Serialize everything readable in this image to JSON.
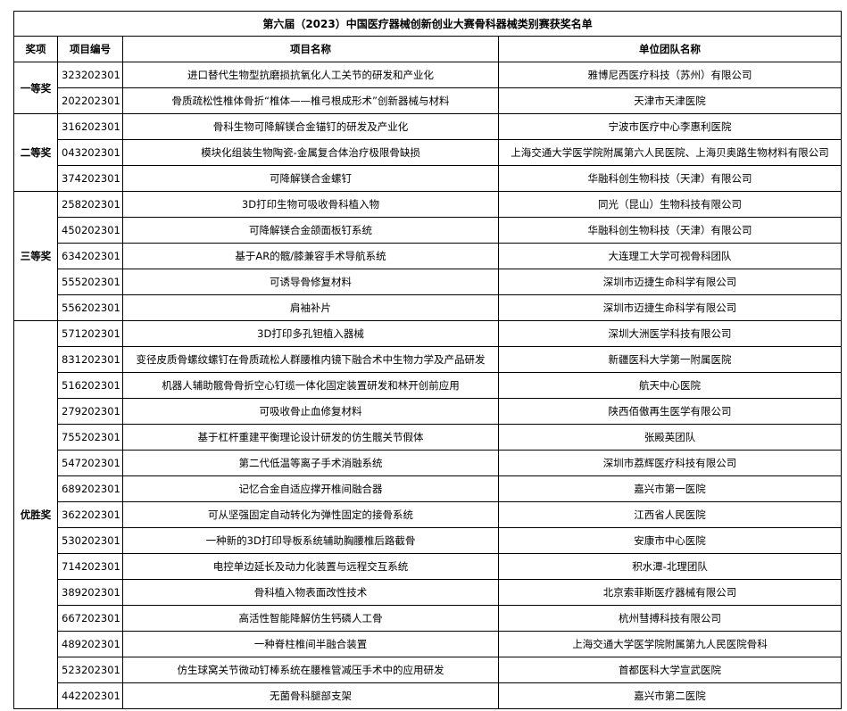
{
  "title": "第六届（2023）中国医疗器械创新创业大赛骨科器械类别赛获奖名单",
  "headers": {
    "award": "奖项",
    "number": "项目编号",
    "project": "项目名称",
    "unit": "单位团队名称"
  },
  "groups": [
    {
      "award": "一等奖",
      "rows": [
        {
          "number": "323202301",
          "project": "进口替代生物型抗磨损抗氧化人工关节的研发和产业化",
          "unit": "雅博尼西医疗科技（苏州）有限公司"
        },
        {
          "number": "202202301",
          "project": "骨质疏松性椎体骨折“椎体——椎弓根成形术”创新器械与材料",
          "unit": "天津市天津医院"
        }
      ]
    },
    {
      "award": "二等奖",
      "rows": [
        {
          "number": "316202301",
          "project": "骨科生物可降解镁合金锚钉的研发及产业化",
          "unit": "宁波市医疗中心李惠利医院"
        },
        {
          "number": "043202301",
          "project": "模块化组装生物陶瓷-金属复合体治疗极限骨缺损",
          "unit": "上海交通大学医学院附属第六人民医院、上海贝奥路生物材料有限公司"
        },
        {
          "number": "374202301",
          "project": "可降解镁合金螺钉",
          "unit": "华融科创生物科技（天津）有限公司"
        }
      ]
    },
    {
      "award": "三等奖",
      "rows": [
        {
          "number": "258202301",
          "project": "3D打印生物可吸收骨科植入物",
          "unit": "同光（昆山）生物科技有限公司"
        },
        {
          "number": "450202301",
          "project": "可降解镁合金颌面板钉系统",
          "unit": "华融科创生物科技（天津）有限公司"
        },
        {
          "number": "634202301",
          "project": "基于AR的髋/膝兼容手术导航系统",
          "unit": "大连理工大学可视骨科团队"
        },
        {
          "number": "555202301",
          "project": "可诱导骨修复材料",
          "unit": "深圳市迈捷生命科学有限公司"
        },
        {
          "number": "556202301",
          "project": "肩袖补片",
          "unit": "深圳市迈捷生命科学有限公司"
        }
      ]
    },
    {
      "award": "优胜奖",
      "rows": [
        {
          "number": "571202301",
          "project": "3D打印多孔钽植入器械",
          "unit": "深圳大洲医学科技有限公司"
        },
        {
          "number": "831202301",
          "project": "变径皮质骨螺纹螺钉在骨质疏松人群腰椎内镜下融合术中生物力学及产品研发",
          "unit": "新疆医科大学第一附属医院"
        },
        {
          "number": "516202301",
          "project": "机器人辅助髋骨骨折空心钉缆一体化固定装置研发和林开创前应用",
          "unit": "航天中心医院"
        },
        {
          "number": "279202301",
          "project": "可吸收骨止血修复材料",
          "unit": "陕西佰傲再生医学有限公司"
        },
        {
          "number": "755202301",
          "project": "基于杠杆重建平衡理论设计研发的仿生髋关节假体",
          "unit": "张殿英团队"
        },
        {
          "number": "547202301",
          "project": "第二代低温等离子手术消融系统",
          "unit": "深圳市荔辉医疗科技有限公司"
        },
        {
          "number": "689202301",
          "project": "记忆合金自适应撑开椎间融合器",
          "unit": "嘉兴市第一医院"
        },
        {
          "number": "362202301",
          "project": "可从坚强固定自动转化为弹性固定的接骨系统",
          "unit": "江西省人民医院"
        },
        {
          "number": "530202301",
          "project": "一种新的3D打印导板系统辅助胸腰椎后路截骨",
          "unit": "安康市中心医院"
        },
        {
          "number": "714202301",
          "project": "电控单边延长及动力化装置与远程交互系统",
          "unit": "积水潭-北理团队"
        },
        {
          "number": "389202301",
          "project": "骨科植入物表面改性技术",
          "unit": "北京索菲斯医疗器械有限公司"
        },
        {
          "number": "667202301",
          "project": "高活性智能降解仿生钙磷人工骨",
          "unit": "杭州彗搏科技有限公司"
        },
        {
          "number": "489202301",
          "project": "一种脊柱椎间半融合装置",
          "unit": "上海交通大学医学院附属第九人民医院骨科"
        },
        {
          "number": "523202301",
          "project": "仿生球窝关节微动钉棒系统在腰椎管减压手术中的应用研发",
          "unit": "首都医科大学宣武医院"
        },
        {
          "number": "442202301",
          "project": "无菌骨科腿部支架",
          "unit": "嘉兴市第二医院"
        }
      ]
    }
  ]
}
